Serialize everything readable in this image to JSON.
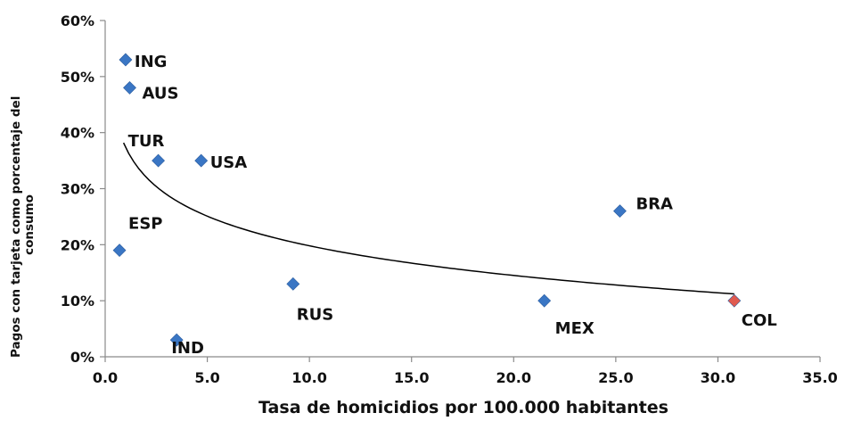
{
  "chart_data": {
    "type": "scatter",
    "title": "",
    "xlabel": "Tasa de homicidios por 100.000 habitantes",
    "ylabel": "Pagos con tarjeta como porcentaje del consumo",
    "xlim": [
      0,
      35
    ],
    "ylim": [
      0,
      0.6
    ],
    "x_ticks": [
      "0.0",
      "5.0",
      "10.0",
      "15.0",
      "20.0",
      "25.0",
      "30.0",
      "35.0"
    ],
    "y_ticks": [
      "0%",
      "10%",
      "20%",
      "30%",
      "40%",
      "50%",
      "60%"
    ],
    "grid": false,
    "legend": "none",
    "points": [
      {
        "label": "ING",
        "x": 1.0,
        "y": 0.53,
        "color": "#3a76c4"
      },
      {
        "label": "AUS",
        "x": 1.2,
        "y": 0.48,
        "color": "#3a76c4"
      },
      {
        "label": "TUR",
        "x": 2.6,
        "y": 0.35,
        "color": "#3a76c4"
      },
      {
        "label": "USA",
        "x": 4.7,
        "y": 0.35,
        "color": "#3a76c4"
      },
      {
        "label": "ESP",
        "x": 0.7,
        "y": 0.19,
        "color": "#3a76c4"
      },
      {
        "label": "RUS",
        "x": 9.2,
        "y": 0.13,
        "color": "#3a76c4"
      },
      {
        "label": "IND",
        "x": 3.5,
        "y": 0.03,
        "color": "#3a76c4"
      },
      {
        "label": "MEX",
        "x": 21.5,
        "y": 0.1,
        "color": "#3a76c4"
      },
      {
        "label": "BRA",
        "x": 25.2,
        "y": 0.26,
        "color": "#3a76c4"
      },
      {
        "label": "COL",
        "x": 30.8,
        "y": 0.1,
        "color": "#e05a4f"
      }
    ],
    "trendline": {
      "type": "logarithmic",
      "a": 0.3737,
      "b": -0.0763,
      "x_range": [
        0.9,
        30.8
      ],
      "color": "#000000"
    }
  }
}
